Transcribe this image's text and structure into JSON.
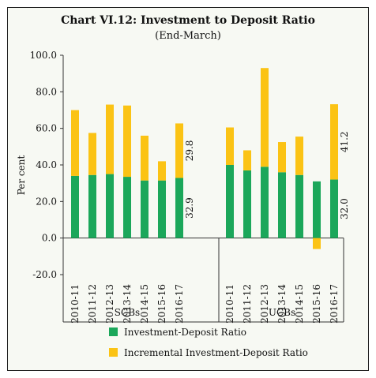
{
  "chart_data": {
    "type": "bar",
    "stacked": true,
    "title": "Chart VI.12: Investment to Deposit Ratio",
    "subtitle": "(End-March)",
    "ylabel": "Per cent",
    "ylim": [
      -20,
      100
    ],
    "yticks": [
      "-20.0",
      "0.0",
      "20.0",
      "40.0",
      "60.0",
      "80.0",
      "100.0"
    ],
    "groups": [
      {
        "name": "SCBs",
        "categories": [
          "2010-11",
          "2011-12",
          "2012-13",
          "2013-14",
          "2014-15",
          "2015-16",
          "2016-17"
        ],
        "series": [
          {
            "name": "Investment-Deposit Ratio",
            "values": [
              34,
              34.5,
              35,
              33.5,
              31.5,
              31.5,
              32.9
            ]
          },
          {
            "name": "Incremental Investment-Deposit Ratio",
            "values": [
              36,
              23,
              38,
              39,
              24.5,
              10.5,
              29.8
            ]
          }
        ]
      },
      {
        "name": "UCBs",
        "categories": [
          "2010-11",
          "2011-12",
          "2012-13",
          "2013-14",
          "2014-15",
          "2015-16",
          "2016-17"
        ],
        "series": [
          {
            "name": "Investment-Deposit Ratio",
            "values": [
              40,
              37,
              39,
              36,
              34.5,
              31,
              32.0
            ]
          },
          {
            "name": "Incremental Investment-Deposit Ratio",
            "values": [
              20.5,
              11,
              54,
              16.5,
              21,
              -6,
              41.2
            ]
          }
        ]
      }
    ],
    "data_labels": [
      {
        "text": "29.8"
      },
      {
        "text": "32.9"
      },
      {
        "text": "41.2"
      },
      {
        "text": "32.0"
      }
    ],
    "colors": {
      "base": "#1ba75a",
      "incremental": "#fbc314"
    },
    "legend": "bottom"
  }
}
